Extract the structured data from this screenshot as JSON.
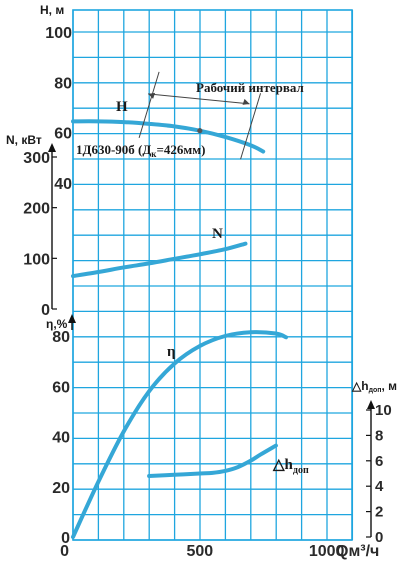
{
  "colors": {
    "background": "#ffffff",
    "frame": "#1fa6df",
    "grid": "#1fa6df",
    "curve": "#35a7d6",
    "text": "#2a2a2a"
  },
  "labels": {
    "y_head": "Н, м",
    "y_power": "N, кВт",
    "y_eff": "η,%",
    "y_npsh": "△h",
    "y_npsh_sub": "доп",
    "y_npsh_unit": ", м",
    "x_unit": "Qм³/ч",
    "model": "1Д630-90б (Д",
    "model_sub": "к",
    "model_tail": "=426мм)",
    "work_range": "Рабочий интервал",
    "curve_H": "Н",
    "curve_N": "N",
    "curve_eta": "η",
    "curve_dh": "△h",
    "curve_dh_sub": "доп"
  },
  "chart_data": {
    "type": "line",
    "x": {
      "label": "Qм³/ч",
      "lim": [
        0,
        1100
      ],
      "ticks": [
        "0",
        "500",
        "1000"
      ]
    },
    "axes": {
      "head": {
        "label": "Н, м",
        "ticks": [
          "40",
          "60",
          "80",
          "100"
        ],
        "lim": [
          30,
          100
        ]
      },
      "power": {
        "label": "N, кВт",
        "ticks": [
          "0",
          "100",
          "200",
          "300"
        ],
        "lim": [
          0,
          300
        ]
      },
      "efficiency": {
        "label": "η,%",
        "ticks": [
          "0",
          "20",
          "40",
          "60",
          "80"
        ],
        "lim": [
          0,
          90
        ]
      },
      "npsh": {
        "label": "△hдоп, м",
        "ticks": [
          "0",
          "2",
          "4",
          "6",
          "8",
          "10"
        ],
        "lim": [
          0,
          10
        ]
      }
    },
    "series": [
      {
        "name": "Н",
        "axis": "head",
        "x": [
          0,
          100,
          200,
          300,
          400,
          500,
          600,
          700,
          750
        ],
        "y": [
          64.5,
          64.5,
          64.2,
          63.5,
          62.5,
          60.8,
          58.3,
          55,
          52.5
        ]
      },
      {
        "name": "N",
        "axis": "power",
        "x": [
          0,
          100,
          200,
          300,
          400,
          500,
          600,
          680
        ],
        "y": [
          65,
          73,
          82,
          90,
          99,
          108,
          118,
          129
        ]
      },
      {
        "name": "η",
        "axis": "efficiency",
        "x": [
          0,
          100,
          200,
          300,
          400,
          500,
          600,
          700,
          800,
          840
        ],
        "y": [
          0,
          22,
          42,
          58,
          69,
          76,
          80,
          81.5,
          81,
          79.5
        ]
      },
      {
        "name": "△hдоп",
        "axis": "npsh",
        "x": [
          300,
          400,
          500,
          550,
          600,
          650,
          700,
          740,
          800
        ],
        "y": [
          4.8,
          4.9,
          5.0,
          5.05,
          5.2,
          5.5,
          6.0,
          6.5,
          7.2
        ]
      }
    ],
    "operating_range": {
      "label": "Рабочий интервал",
      "from": 300,
      "to": 700,
      "nominal": 500
    },
    "grid": true
  }
}
